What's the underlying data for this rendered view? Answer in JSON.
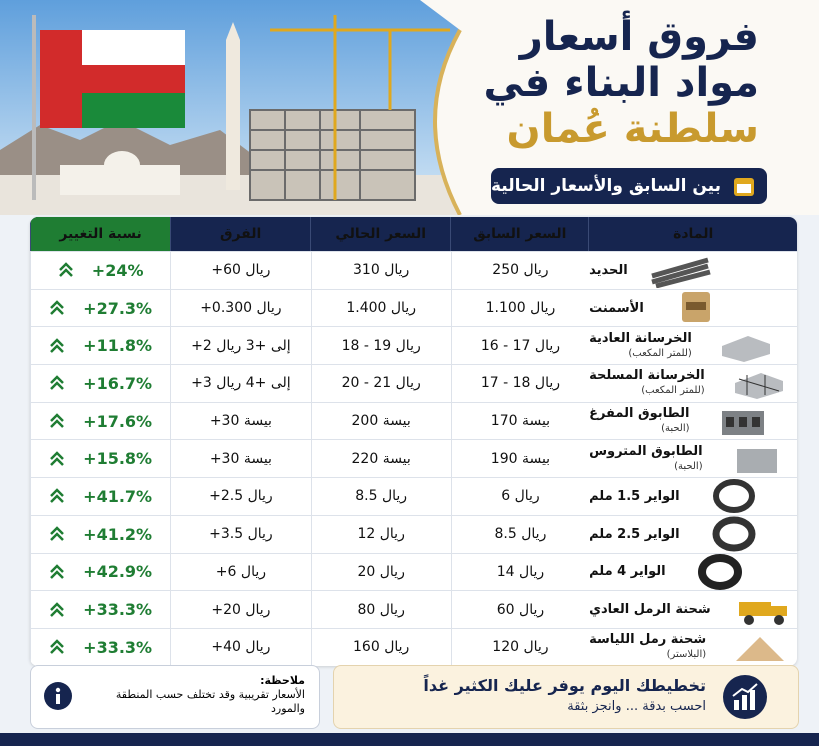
{
  "header": {
    "title_lines": [
      "فروق أسعار",
      "مواد البناء في",
      "سلطنة عُمان"
    ],
    "subtitle": "بين السابق والأسعار الحالية"
  },
  "table": {
    "columns": [
      "المادة",
      "السعر السابق",
      "السعر الحالي",
      "الفرق",
      "نسبة التغيير"
    ],
    "rows": [
      {
        "name": "الحديد",
        "previous": "250 ريال",
        "current": "310 ريال",
        "difference": "+60 ريال",
        "change": "+24%"
      },
      {
        "name": "الأسمنت",
        "previous": "1.100 ريال",
        "current": "1.400 ريال",
        "difference": "+0.300 ريال",
        "change": "+27.3%"
      },
      {
        "name": "الخرسانة العادية",
        "unit": "(للمتر المكعب)",
        "previous": "16 - 17 ريال",
        "current": "18 - 19 ريال",
        "difference": "+2 إلى +3 ريال",
        "change": "+11.8%"
      },
      {
        "name": "الخرسانة المسلحة",
        "unit": "(للمتر المكعب)",
        "previous": "17 - 18 ريال",
        "current": "20 - 21 ريال",
        "difference": "+3 إلى +4 ريال",
        "change": "+16.7%"
      },
      {
        "name": "الطابوق المفرغ",
        "unit": "(الحبة)",
        "previous": "170 بيسة",
        "current": "200 بيسة",
        "difference": "+30 بيسة",
        "change": "+17.6%"
      },
      {
        "name": "الطابوق المتروس",
        "unit": "(الحبة)",
        "previous": "190 بيسة",
        "current": "220 بيسة",
        "difference": "+30 بيسة",
        "change": "+15.8%"
      },
      {
        "name": "الواير 1.5 ملم",
        "previous": "6 ريال",
        "current": "8.5 ريال",
        "difference": "+2.5 ريال",
        "change": "+41.7%"
      },
      {
        "name": "الواير 2.5 ملم",
        "previous": "8.5 ريال",
        "current": "12 ريال",
        "difference": "+3.5 ريال",
        "change": "+41.2%"
      },
      {
        "name": "الواير 4 ملم",
        "previous": "14 ريال",
        "current": "20 ريال",
        "difference": "+6 ريال",
        "change": "+42.9%"
      },
      {
        "name": "شحنة الرمل العادي",
        "previous": "60 ريال",
        "current": "80 ريال",
        "difference": "+20 ريال",
        "change": "+33.3%"
      },
      {
        "name": "شحنة رمل اللياسة",
        "unit": "(البلاستر)",
        "previous": "120 ريال",
        "current": "160 ريال",
        "difference": "+40 ريال",
        "change": "+33.3%"
      }
    ]
  },
  "note": {
    "label": "ملاحظة:",
    "text": "الأسعار تقريبية وقد تختلف حسب المنطقة والمورد"
  },
  "banner": {
    "headline": "تخطيطك اليوم يوفر عليك الكثير غداً",
    "tagline": "احسب بدقة ... وانجز بثقة"
  }
}
